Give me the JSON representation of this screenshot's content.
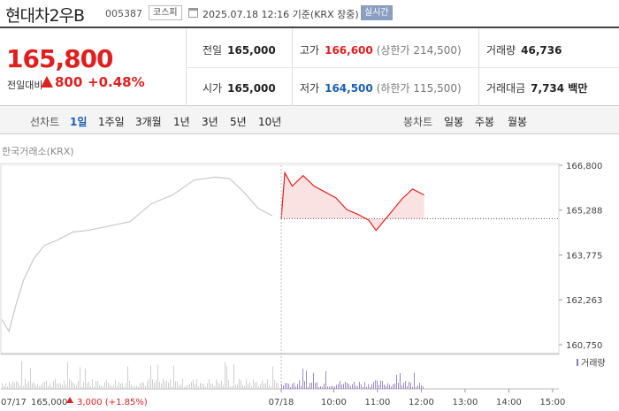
{
  "header": {
    "name": "현대차2우B",
    "code": "005387",
    "market": "코스피",
    "timestamp": "2025.07.18 12:16 기준(KRX 장중)",
    "realtime": "실시간"
  },
  "quote": {
    "price": "165,800",
    "change_label": "전일대비",
    "change": "800",
    "change_pct": "+0.48%",
    "prev_close_label": "전일",
    "prev_close": "165,000",
    "high_label": "고가",
    "high": "166,600",
    "upper_limit": "(상한가 214,500)",
    "volume_label": "거래량",
    "volume": "46,736",
    "open_label": "시가",
    "open": "165,000",
    "low_label": "저가",
    "low": "164,500",
    "lower_limit": "(하한가 115,500)",
    "amount_label": "거래대금",
    "amount": "7,734 백만"
  },
  "tabs": {
    "line_label": "선차트",
    "line_items": [
      "1일",
      "1주일",
      "3개월",
      "1년",
      "3년",
      "5년",
      "10년"
    ],
    "candle_label": "봉차트",
    "candle_items": [
      "일봉",
      "주봉",
      "월봉"
    ]
  },
  "chart": {
    "source": "한국거래소(KRX)",
    "volume_legend": "거래량",
    "footer_date": "07/17",
    "footer_price": "165,000",
    "footer_change": "3,000 (+1.85%)"
  },
  "colors": {
    "up": "#e01f1f",
    "down": "#1a5fb4",
    "prev_line": "#c8c8c8"
  },
  "chart_data": {
    "type": "line",
    "y_ticks": [
      "166,800",
      "165,288",
      "163,775",
      "162,263",
      "160,750"
    ],
    "y_values": [
      166800,
      165288,
      163775,
      162263,
      160750
    ],
    "ylim": [
      160750,
      166800
    ],
    "x_ticks": [
      "07/18",
      "10:00",
      "11:00",
      "12:00",
      "13:00",
      "14:00",
      "15:00"
    ],
    "baseline": 165000,
    "series": [
      {
        "x": [
          "07/17 09:00",
          "09:10",
          "09:20",
          "09:30",
          "09:45",
          "10:00",
          "10:20",
          "10:40",
          "11:00",
          "11:30",
          "12:00",
          "12:30",
          "13:00",
          "13:30",
          "14:00",
          "14:20",
          "14:40",
          "15:00",
          "15:20"
        ],
        "values": [
          161600,
          161200,
          162100,
          162900,
          163650,
          164100,
          164300,
          164550,
          164600,
          164750,
          164900,
          165500,
          165800,
          166300,
          166400,
          166350,
          165900,
          165350,
          165100
        ]
      },
      {
        "name": "07/18",
        "x": [
          "09:00",
          "09:05",
          "09:15",
          "09:30",
          "09:45",
          "10:00",
          "10:15",
          "10:30",
          "10:45",
          "11:00",
          "11:10",
          "11:20",
          "11:30",
          "11:45",
          "12:00",
          "12:16"
        ],
        "values": [
          165000,
          166550,
          166100,
          166450,
          166100,
          165900,
          165700,
          165300,
          165150,
          164950,
          164600,
          164900,
          165200,
          165650,
          166000,
          165800
        ]
      }
    ]
  }
}
